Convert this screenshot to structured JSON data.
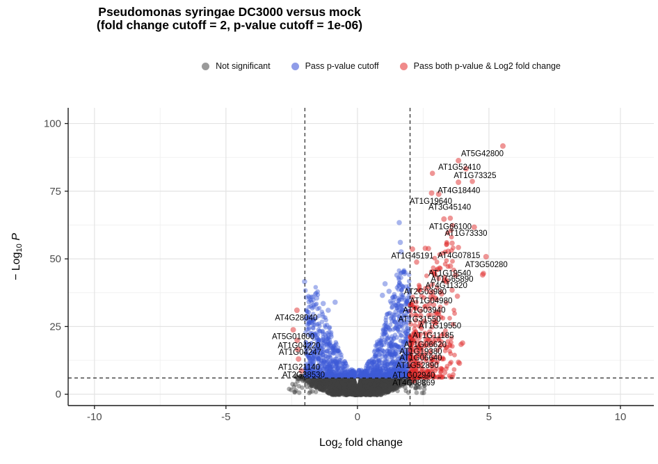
{
  "title": "Pseudomonas syringae DC3000 versus mock",
  "subtitle": "(fold change cutoff = 2, p-value cutoff = 1e-06)",
  "legend": {
    "items": [
      {
        "label": "Not significant",
        "color": "#9a9a9a"
      },
      {
        "label": "Pass p-value cutoff",
        "color": "#8f9ce8"
      },
      {
        "label": "Pass both p-value & Log2 fold change",
        "color": "#f08a8a"
      }
    ]
  },
  "chart_data": {
    "type": "scatter",
    "title": "Pseudomonas syringae DC3000 versus mock",
    "subtitle": "(fold change cutoff = 2, p-value cutoff = 1e-06)",
    "xlabel": {
      "pre": "Log",
      "sub": "2",
      "post": " fold change"
    },
    "ylabel": {
      "pre": "− Log",
      "sub": "10",
      "post": " P",
      "post_italic": true
    },
    "xlim": [
      -11.0,
      11.27
    ],
    "ylim": [
      -4.2,
      105.8
    ],
    "x_ticks": [
      -10,
      -5,
      0,
      5,
      10
    ],
    "y_ticks": [
      0,
      25,
      50,
      75,
      100
    ],
    "x_minor": [
      -7.5,
      -2.5,
      2.5,
      7.5
    ],
    "y_minor": [
      12.5,
      37.5,
      62.5,
      87.5
    ],
    "grid": true,
    "legend_position": "top",
    "cutoffs": {
      "log2fc_lines_x": [
        -2,
        2
      ],
      "pvalue_line_y": 6
    },
    "colors": {
      "ns": "rgba(64,64,64,0.45)",
      "pvalue": "rgba(62,92,216,0.45)",
      "both": "rgba(224,44,44,0.5)",
      "grid_major": "#e3e3e3",
      "grid_minor": "#f1f1f1",
      "axis": "#1a1a1a",
      "tick_text": "#4d4d4d",
      "cutoff_line": "#111111"
    },
    "labeled_genes": [
      [
        "AT5G42800",
        5.53,
        91.7,
        4.75,
        89.0
      ],
      [
        "AT1G52410",
        3.84,
        86.3,
        3.88,
        83.9
      ],
      [
        "AT1G73325",
        4.13,
        83.3,
        4.47,
        80.9
      ],
      [
        "AT4G18440",
        3.84,
        78.3,
        3.86,
        75.3
      ],
      [
        "AT1G19640",
        2.82,
        74.3,
        2.79,
        71.4
      ],
      [
        "AT3G45140",
        3.09,
        73.9,
        3.51,
        69.2
      ],
      [
        "AT1G66100",
        3.29,
        64.7,
        3.53,
        62.0
      ],
      [
        "AT1G73330",
        4.44,
        61.7,
        4.13,
        59.6
      ],
      [
        "AT1G45191",
        2.09,
        53.6,
        2.09,
        51.2
      ],
      [
        "AT4G07815",
        4.89,
        50.8,
        3.86,
        51.3
      ],
      [
        "AT3G50280",
        4.76,
        44.1,
        4.9,
        48.0
      ],
      [
        "AT1G19540",
        3.53,
        47.3,
        3.51,
        44.7
      ],
      [
        "AT1G65890",
        3.73,
        44.0,
        3.6,
        42.6
      ],
      [
        "AT4G11320",
        3.4,
        41.5,
        3.38,
        40.2
      ],
      [
        "AT2G03980",
        2.6,
        39.0,
        2.58,
        37.9
      ],
      [
        "AT1G04980",
        2.8,
        36.0,
        2.8,
        34.6
      ],
      [
        "AT1G03940",
        2.6,
        32.5,
        2.54,
        31.2
      ],
      [
        "AT1G31550",
        2.4,
        29.0,
        2.36,
        27.8
      ],
      [
        "AT1G19550",
        2.95,
        26.3,
        3.14,
        25.3
      ],
      [
        "AT1G11185",
        2.75,
        23.0,
        2.88,
        21.8
      ],
      [
        "AT1G06620",
        2.6,
        19.0,
        2.58,
        18.4
      ],
      [
        "AT1G19380",
        2.45,
        16.3,
        2.41,
        15.8
      ],
      [
        "AT1G06640",
        2.42,
        14.0,
        2.41,
        13.5
      ],
      [
        "AT1G52890",
        2.3,
        11.2,
        2.28,
        10.7
      ],
      [
        "AT1G02940",
        2.2,
        7.6,
        2.14,
        7.1
      ],
      [
        "AT4G08869",
        2.15,
        5.0,
        2.14,
        4.3
      ],
      [
        "AT4G28040",
        -2.3,
        31.0,
        -2.33,
        28.3
      ],
      [
        "AT5G01600",
        -2.44,
        23.8,
        -2.44,
        21.4
      ],
      [
        "AT1G04220",
        -2.29,
        19.9,
        -2.22,
        18.0
      ],
      [
        "AT1G04247",
        -2.27,
        16.5,
        -2.18,
        15.6
      ],
      [
        "AT1G21140",
        -2.24,
        13.0,
        -2.22,
        10.0
      ],
      [
        "AT2G38530",
        -2.13,
        8.6,
        -2.05,
        7.3
      ]
    ],
    "extra_points": {
      "both": [
        [
          2.85,
          81.6
        ],
        [
          4.37,
          78.6
        ],
        [
          3.53,
          65.0
        ],
        [
          3.4,
          55.5
        ],
        [
          3.6,
          55.8
        ],
        [
          3.84,
          54.2
        ],
        [
          2.58,
          53.9
        ],
        [
          2.7,
          53.8
        ],
        [
          3.45,
          52.8
        ],
        [
          2.25,
          48.8
        ],
        [
          4.79,
          44.6
        ],
        [
          3.05,
          46.2
        ],
        [
          2.95,
          44.0
        ],
        [
          3.3,
          42.0
        ],
        [
          3.6,
          38.5
        ],
        [
          3.2,
          37.0
        ],
        [
          3.8,
          36.2
        ],
        [
          3.0,
          35.0
        ],
        [
          2.9,
          33.0
        ],
        [
          3.1,
          30.5
        ],
        [
          4.0,
          18.9
        ],
        [
          3.94,
          18.4
        ],
        [
          3.88,
          11.4
        ],
        [
          3.84,
          11.8
        ]
      ],
      "pvalue": [
        [
          -2.01,
          41.6
        ],
        [
          -1.11,
          31.0
        ],
        [
          1.59,
          63.4
        ],
        [
          1.63,
          56.1
        ],
        [
          1.66,
          52.6
        ],
        [
          1.5,
          44.0
        ],
        [
          1.2,
          38.0
        ],
        [
          -0.85,
          34.0
        ],
        [
          1.05,
          40.8
        ],
        [
          0.95,
          36.5
        ],
        [
          -1.3,
          33.5
        ],
        [
          -1.55,
          35.5
        ]
      ]
    },
    "clouds": {
      "seed": 42,
      "ns": {
        "n": 2800,
        "x_spread": 2.55,
        "top_cap": 6.9,
        "notch_base": 0.7,
        "notch_slope": 36,
        "bottom_slope": 4.4,
        "bottom_start": 1.02
      },
      "ns_sparse": {
        "n": 130,
        "x_range": 2.6,
        "y_max": 6.3
      },
      "blue_right": {
        "n": 700,
        "x_min": 0.18,
        "x_max": 1.98,
        "ymax_coef": 20,
        "ymax_pow": 1.5,
        "ymax_cap": 46,
        "y_base": 6.6
      },
      "blue_left": {
        "n": 560,
        "x_min": 0.18,
        "x_max": 1.98,
        "ymax_coef": 17,
        "ymax_pow": 1.5,
        "ymax_cap": 40,
        "y_base": 6.6
      },
      "blue_center": {
        "n": 90,
        "y_base": 6.6
      },
      "red_right": {
        "n": 330,
        "x_min": 2.0,
        "x_tail": 1.7,
        "y_base": 6.2,
        "h_base": 28,
        "h_slope": 18
      }
    }
  }
}
